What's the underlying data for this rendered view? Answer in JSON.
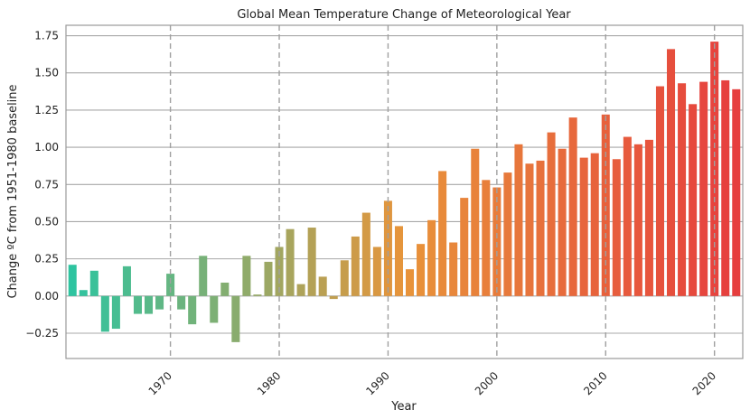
{
  "chart_data": {
    "type": "bar",
    "title": "Global Mean Temperature Change of Meteorological Year",
    "xlabel": "Year",
    "ylabel": "Change ºC from 1951-1980 baseline",
    "ylim": [
      -0.42,
      1.82
    ],
    "xlim": [
      1960.4,
      2022.6
    ],
    "yticks": [
      -0.25,
      0.0,
      0.25,
      0.5,
      0.75,
      1.0,
      1.25,
      1.5,
      1.75
    ],
    "ytick_labels": [
      "−0.25",
      "0.00",
      "0.25",
      "0.50",
      "0.75",
      "1.00",
      "1.25",
      "1.50",
      "1.75"
    ],
    "xticks": [
      1970,
      1980,
      1990,
      2000,
      2010,
      2020
    ],
    "xtick_labels": [
      "1970",
      "1980",
      "1990",
      "2000",
      "2010",
      "2020"
    ],
    "grid": true,
    "start_color": "#2ec4a0",
    "end_color": "#e63e3e",
    "categories": [
      1961,
      1962,
      1963,
      1964,
      1965,
      1966,
      1967,
      1968,
      1969,
      1970,
      1971,
      1972,
      1973,
      1974,
      1975,
      1976,
      1977,
      1978,
      1979,
      1980,
      1981,
      1982,
      1983,
      1984,
      1985,
      1986,
      1987,
      1988,
      1989,
      1990,
      1991,
      1992,
      1993,
      1994,
      1995,
      1996,
      1997,
      1998,
      1999,
      2000,
      2001,
      2002,
      2003,
      2004,
      2005,
      2006,
      2007,
      2008,
      2009,
      2010,
      2011,
      2012,
      2013,
      2014,
      2015,
      2016,
      2017,
      2018,
      2019,
      2020,
      2021,
      2022
    ],
    "values": [
      0.21,
      0.04,
      0.17,
      -0.24,
      -0.22,
      0.2,
      -0.12,
      -0.12,
      -0.09,
      0.15,
      -0.09,
      -0.19,
      0.27,
      -0.18,
      0.09,
      -0.31,
      0.27,
      0.01,
      0.23,
      0.33,
      0.45,
      0.08,
      0.46,
      0.13,
      -0.02,
      0.24,
      0.4,
      0.56,
      0.33,
      0.64,
      0.47,
      0.18,
      0.35,
      0.51,
      0.84,
      0.36,
      0.66,
      0.99,
      0.78,
      0.73,
      0.83,
      1.02,
      0.89,
      0.91,
      1.1,
      0.99,
      1.2,
      0.93,
      0.96,
      1.22,
      0.92,
      1.07,
      1.02,
      1.05,
      1.41,
      1.66,
      1.43,
      1.29,
      1.44,
      1.71,
      1.45,
      1.39
    ]
  }
}
